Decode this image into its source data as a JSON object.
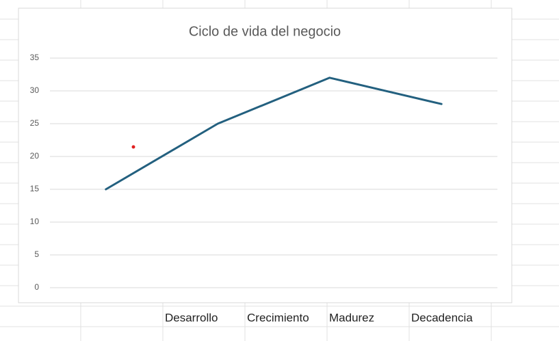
{
  "chart_data": {
    "type": "line",
    "title": "Ciclo de vida del negocio",
    "categories": [
      null,
      null,
      null,
      null
    ],
    "series": [
      {
        "name": null,
        "color": "#23607f",
        "values": [
          15,
          25,
          32,
          28
        ]
      }
    ],
    "ylim": [
      0,
      35
    ],
    "yticks": [
      0,
      5,
      10,
      15,
      20,
      25,
      30,
      35
    ],
    "grid": true
  },
  "sheet": {
    "cells": [
      "Desarrollo",
      "Crecimiento",
      "Madurez",
      "Decadencia"
    ]
  }
}
